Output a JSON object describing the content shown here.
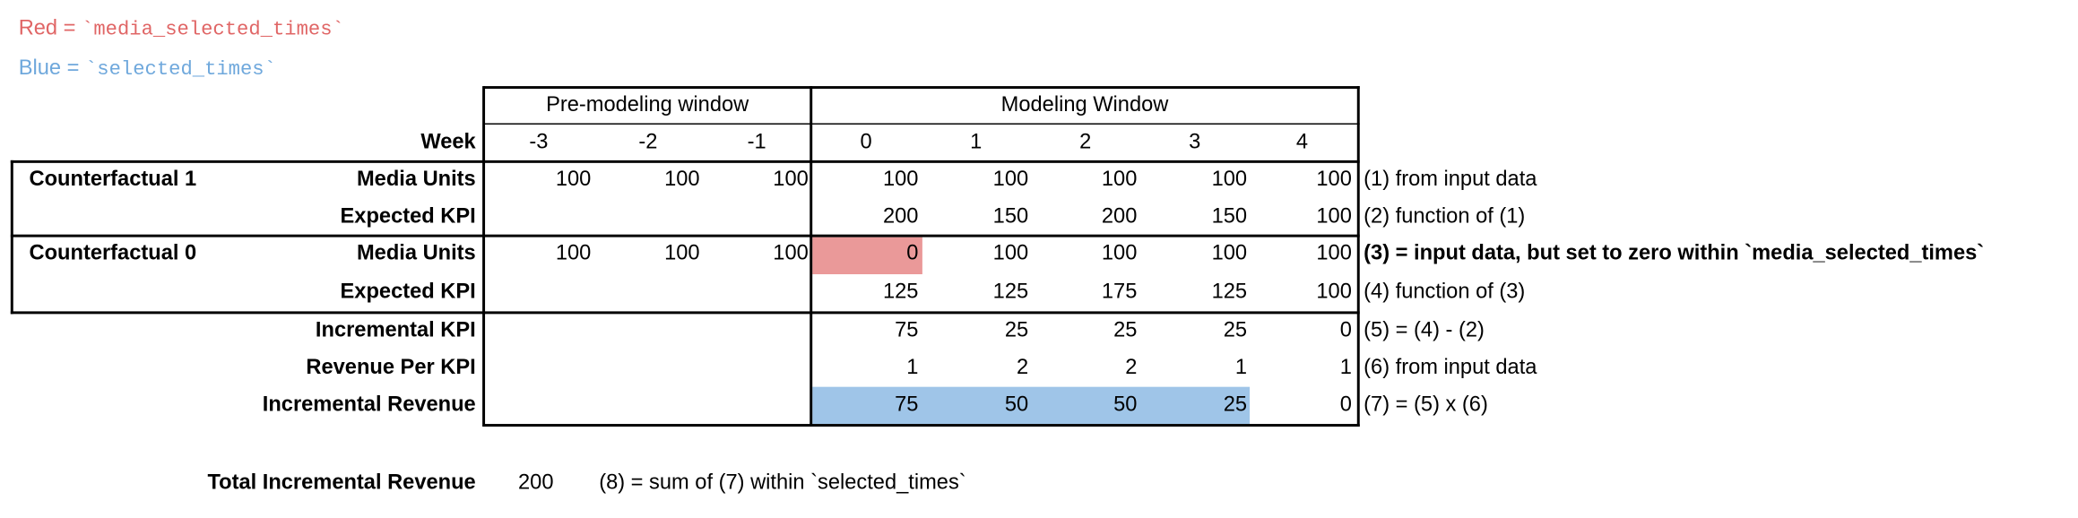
{
  "legend": {
    "red_label": "Red =",
    "red_code": "`media_selected_times`",
    "blue_label": "Blue =",
    "blue_code": "`selected_times`",
    "red_color": "#e06666",
    "blue_color": "#6fa8dc",
    "red_fill": "#ea9999",
    "blue_fill": "#9fc5e8"
  },
  "header": {
    "pre_window": "Pre-modeling window",
    "modeling_window": "Modeling Window",
    "week_label": "Week",
    "weeks": [
      "-3",
      "-2",
      "-1",
      "0",
      "1",
      "2",
      "3",
      "4"
    ]
  },
  "rows": [
    {
      "group": "Counterfactual 1",
      "label": "Media Units",
      "values": [
        "100",
        "100",
        "100",
        "100",
        "100",
        "100",
        "100",
        "100"
      ],
      "note": "(1) from input data",
      "note_bold": false
    },
    {
      "group": "",
      "label": "Expected KPI",
      "values": [
        "",
        "",
        "",
        "200",
        "150",
        "200",
        "150",
        "100"
      ],
      "note": "(2) function of (1)",
      "note_bold": false
    },
    {
      "group": "Counterfactual 0",
      "label": "Media Units",
      "values": [
        "100",
        "100",
        "100",
        "0",
        "100",
        "100",
        "100",
        "100"
      ],
      "note": "(3) = input data, but set to zero within `media_selected_times`",
      "note_bold": true
    },
    {
      "group": "",
      "label": "Expected KPI",
      "values": [
        "",
        "",
        "",
        "125",
        "125",
        "175",
        "125",
        "100"
      ],
      "note": "(4) function of (3)",
      "note_bold": false
    },
    {
      "group": "",
      "label": "Incremental KPI",
      "values": [
        "",
        "",
        "",
        "75",
        "25",
        "25",
        "25",
        "0"
      ],
      "note": "(5) = (4) - (2)",
      "note_bold": false
    },
    {
      "group": "",
      "label": "Revenue Per KPI",
      "values": [
        "",
        "",
        "",
        "1",
        "2",
        "2",
        "1",
        "1"
      ],
      "note": "(6) from input data",
      "note_bold": false
    },
    {
      "group": "",
      "label": "Incremental Revenue",
      "values": [
        "",
        "",
        "",
        "75",
        "50",
        "50",
        "25",
        "0"
      ],
      "note": "(7) = (5) x (6)",
      "note_bold": false
    }
  ],
  "total": {
    "label": "Total Incremental Revenue",
    "value": "200",
    "note": "(8) = sum of (7) within `selected_times`"
  }
}
